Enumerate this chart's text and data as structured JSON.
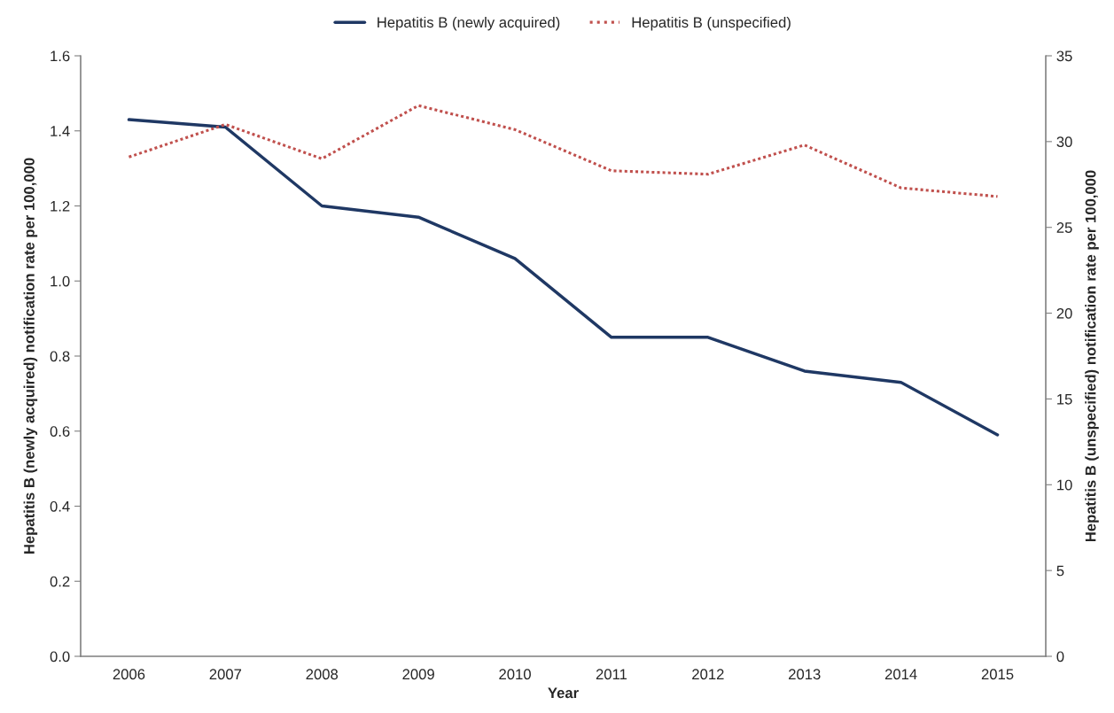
{
  "chart_data": {
    "type": "line",
    "xlabel": "Year",
    "ylabel": "Hepatitis B (newly acquired) notification rate per 100,000",
    "y2label": "Hepatitis B (unspecified) notification rate per 100,000",
    "categories": [
      "2006",
      "2007",
      "2008",
      "2009",
      "2010",
      "2011",
      "2012",
      "2013",
      "2014",
      "2015"
    ],
    "series": [
      {
        "name": "Hepatitis B (newly acquired)",
        "color": "#1f3864",
        "line_style": "solid",
        "values": [
          1.43,
          1.41,
          1.2,
          1.17,
          1.06,
          0.85,
          0.85,
          0.76,
          0.73,
          0.59
        ]
      },
      {
        "name": "Hepatitis B (unspecified)",
        "color": "#c0504d",
        "line_style": "dotted",
        "axis": "y2",
        "values": [
          29.1,
          31.0,
          29.0,
          32.1,
          30.7,
          28.3,
          28.1,
          29.8,
          27.3,
          26.8
        ]
      }
    ],
    "ylim": [
      0,
      1.6
    ],
    "yticks": [
      {
        "value": 0,
        "label": "0.0"
      },
      0.2,
      0.4,
      0.6,
      0.8,
      {
        "value": 1,
        "label": "1.0"
      },
      1.2,
      1.4,
      1.6
    ],
    "y2lim": [
      0,
      35
    ],
    "y2ticks": [
      0,
      5,
      10,
      15,
      20,
      25,
      30,
      35
    ],
    "grid": false,
    "legend": "top",
    "marker": "none"
  }
}
